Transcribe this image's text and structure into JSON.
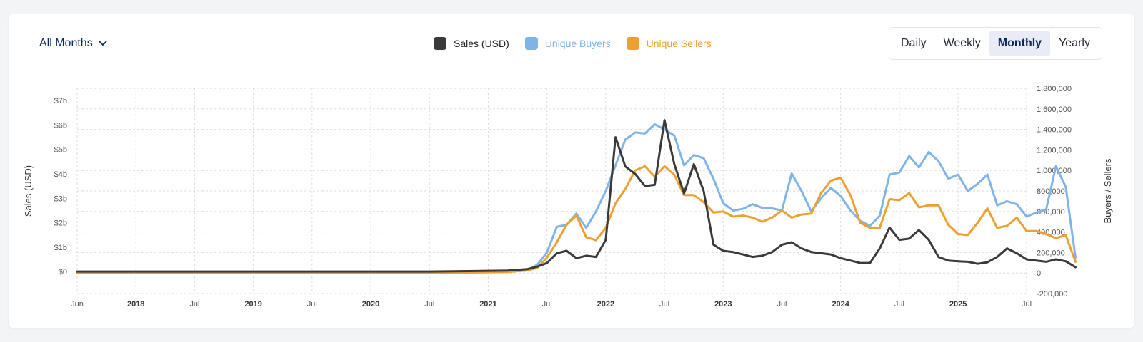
{
  "controls": {
    "month_select_label": "All Months",
    "periods": [
      "Daily",
      "Weekly",
      "Monthly",
      "Yearly"
    ],
    "active_period": "Monthly"
  },
  "colors": {
    "sales": "#3a3a3a",
    "buyers": "#7fb4e8",
    "sellers": "#eda030",
    "grid": "#dddddd"
  },
  "chart_data": {
    "type": "line",
    "legend": [
      {
        "name": "Sales (USD)",
        "color": "#3a3a3a"
      },
      {
        "name": "Unique Buyers",
        "color": "#7fb4e8"
      },
      {
        "name": "Unique Sellers",
        "color": "#eda030"
      }
    ],
    "legend_position": "top-center",
    "grid": true,
    "x_start": "2017-06",
    "x_end": "2025-07",
    "x_tick_labels": [
      "Jun",
      "2018",
      "Jul",
      "2019",
      "Jul",
      "2020",
      "Jul",
      "2021",
      "Jul",
      "2022",
      "Jul",
      "2023",
      "Jul",
      "2024",
      "Jul",
      "2025",
      "Jul"
    ],
    "y_left": {
      "label": "Sales (USD)",
      "range": [
        -0.9,
        7.5
      ],
      "unit": "b",
      "tick_values": [
        0,
        1,
        2,
        3,
        4,
        5,
        6,
        7
      ],
      "tick_labels": [
        "$0",
        "$1b",
        "$2b",
        "$3b",
        "$4b",
        "$5b",
        "$6b",
        "$7b"
      ]
    },
    "y_right": {
      "label": "Buyers / Sellers",
      "range": [
        -200000,
        1800000
      ],
      "tick_values": [
        -200000,
        0,
        200000,
        400000,
        600000,
        800000,
        1000000,
        1200000,
        1400000,
        1600000,
        1800000
      ],
      "tick_labels": [
        "-200,000",
        "0",
        "200,000",
        "400,000",
        "600,000",
        "800,000",
        "1,000,000",
        "1,200,000",
        "1,400,000",
        "1,600,000",
        "1,800,000"
      ]
    },
    "series": [
      {
        "name": "Sales (USD)",
        "axis": "left",
        "values": [
          [
            0,
            0
          ],
          [
            7,
            0
          ],
          [
            12,
            0
          ],
          [
            24,
            0
          ],
          [
            36,
            0
          ],
          [
            40,
            0.02
          ],
          [
            44,
            0.04
          ],
          [
            46,
            0.1
          ],
          [
            47,
            0.2
          ],
          [
            48,
            0.35
          ],
          [
            49,
            0.75
          ],
          [
            50,
            0.85
          ],
          [
            51,
            0.55
          ],
          [
            52,
            0.65
          ],
          [
            53,
            0.6
          ],
          [
            54,
            1.3
          ],
          [
            55,
            5.5
          ],
          [
            56,
            4.3
          ],
          [
            57,
            4.0
          ],
          [
            58,
            3.5
          ],
          [
            59,
            3.55
          ],
          [
            60,
            6.2
          ],
          [
            61,
            4.4
          ],
          [
            62,
            3.2
          ],
          [
            63,
            4.4
          ],
          [
            64,
            3.3
          ],
          [
            65,
            1.1
          ],
          [
            66,
            0.85
          ],
          [
            67,
            0.8
          ],
          [
            68,
            0.7
          ],
          [
            69,
            0.6
          ],
          [
            70,
            0.65
          ],
          [
            71,
            0.8
          ],
          [
            72,
            1.1
          ],
          [
            73,
            1.2
          ],
          [
            74,
            0.95
          ],
          [
            75,
            0.8
          ],
          [
            76,
            0.75
          ],
          [
            77,
            0.7
          ],
          [
            78,
            0.55
          ],
          [
            79,
            0.45
          ],
          [
            80,
            0.35
          ],
          [
            81,
            0.35
          ],
          [
            82,
            0.95
          ],
          [
            83,
            1.8
          ],
          [
            84,
            1.3
          ],
          [
            85,
            1.35
          ],
          [
            86,
            1.7
          ],
          [
            87,
            1.3
          ],
          [
            88,
            0.6
          ],
          [
            89,
            0.45
          ],
          [
            90,
            0.42
          ],
          [
            91,
            0.4
          ],
          [
            92,
            0.32
          ],
          [
            93,
            0.38
          ],
          [
            94,
            0.6
          ],
          [
            95,
            0.95
          ],
          [
            96,
            0.75
          ],
          [
            97,
            0.5
          ],
          [
            98,
            0.45
          ],
          [
            99,
            0.4
          ],
          [
            100,
            0.5
          ],
          [
            101,
            0.42
          ],
          [
            102,
            0.18
          ]
        ]
      },
      {
        "name": "Unique Buyers",
        "axis": "right",
        "values": [
          [
            0,
            0
          ],
          [
            12,
            0
          ],
          [
            24,
            0
          ],
          [
            36,
            0
          ],
          [
            40,
            5000
          ],
          [
            44,
            15000
          ],
          [
            46,
            30000
          ],
          [
            47,
            80000
          ],
          [
            48,
            200000
          ],
          [
            49,
            450000
          ],
          [
            50,
            470000
          ],
          [
            51,
            580000
          ],
          [
            52,
            440000
          ],
          [
            53,
            600000
          ],
          [
            54,
            800000
          ],
          [
            55,
            1050000
          ],
          [
            56,
            1300000
          ],
          [
            57,
            1370000
          ],
          [
            58,
            1360000
          ],
          [
            59,
            1450000
          ],
          [
            60,
            1400000
          ],
          [
            61,
            1340000
          ],
          [
            62,
            1050000
          ],
          [
            63,
            1150000
          ],
          [
            64,
            1120000
          ],
          [
            65,
            920000
          ],
          [
            66,
            680000
          ],
          [
            67,
            610000
          ],
          [
            68,
            625000
          ],
          [
            69,
            670000
          ],
          [
            70,
            635000
          ],
          [
            71,
            630000
          ],
          [
            72,
            610000
          ],
          [
            73,
            970000
          ],
          [
            74,
            800000
          ],
          [
            75,
            600000
          ],
          [
            76,
            730000
          ],
          [
            77,
            830000
          ],
          [
            78,
            750000
          ],
          [
            79,
            610000
          ],
          [
            80,
            510000
          ],
          [
            81,
            460000
          ],
          [
            82,
            560000
          ],
          [
            83,
            960000
          ],
          [
            84,
            980000
          ],
          [
            85,
            1140000
          ],
          [
            86,
            1030000
          ],
          [
            87,
            1180000
          ],
          [
            88,
            1090000
          ],
          [
            89,
            920000
          ],
          [
            90,
            960000
          ],
          [
            91,
            800000
          ],
          [
            92,
            870000
          ],
          [
            93,
            960000
          ],
          [
            94,
            660000
          ],
          [
            95,
            700000
          ],
          [
            96,
            670000
          ],
          [
            97,
            550000
          ],
          [
            98,
            590000
          ],
          [
            99,
            620000
          ],
          [
            100,
            1040000
          ],
          [
            101,
            840000
          ],
          [
            102,
            150000
          ]
        ]
      },
      {
        "name": "Unique Sellers",
        "axis": "right",
        "values": [
          [
            0,
            0
          ],
          [
            12,
            0
          ],
          [
            24,
            0
          ],
          [
            36,
            0
          ],
          [
            40,
            5000
          ],
          [
            44,
            10000
          ],
          [
            46,
            25000
          ],
          [
            47,
            50000
          ],
          [
            48,
            150000
          ],
          [
            49,
            300000
          ],
          [
            50,
            470000
          ],
          [
            51,
            560000
          ],
          [
            52,
            350000
          ],
          [
            53,
            320000
          ],
          [
            54,
            440000
          ],
          [
            55,
            680000
          ],
          [
            56,
            820000
          ],
          [
            57,
            1000000
          ],
          [
            58,
            1040000
          ],
          [
            59,
            940000
          ],
          [
            60,
            1040000
          ],
          [
            61,
            960000
          ],
          [
            62,
            760000
          ],
          [
            63,
            760000
          ],
          [
            64,
            690000
          ],
          [
            65,
            590000
          ],
          [
            66,
            600000
          ],
          [
            67,
            550000
          ],
          [
            68,
            560000
          ],
          [
            69,
            540000
          ],
          [
            70,
            500000
          ],
          [
            71,
            540000
          ],
          [
            72,
            610000
          ],
          [
            73,
            540000
          ],
          [
            74,
            570000
          ],
          [
            75,
            580000
          ],
          [
            76,
            780000
          ],
          [
            77,
            900000
          ],
          [
            78,
            930000
          ],
          [
            79,
            760000
          ],
          [
            80,
            490000
          ],
          [
            81,
            440000
          ],
          [
            82,
            440000
          ],
          [
            83,
            720000
          ],
          [
            84,
            710000
          ],
          [
            85,
            780000
          ],
          [
            86,
            640000
          ],
          [
            87,
            660000
          ],
          [
            88,
            660000
          ],
          [
            89,
            470000
          ],
          [
            90,
            380000
          ],
          [
            91,
            370000
          ],
          [
            92,
            490000
          ],
          [
            93,
            630000
          ],
          [
            94,
            440000
          ],
          [
            95,
            460000
          ],
          [
            96,
            540000
          ],
          [
            97,
            410000
          ],
          [
            98,
            410000
          ],
          [
            99,
            380000
          ],
          [
            100,
            340000
          ],
          [
            101,
            370000
          ],
          [
            102,
            110000
          ]
        ]
      }
    ]
  }
}
